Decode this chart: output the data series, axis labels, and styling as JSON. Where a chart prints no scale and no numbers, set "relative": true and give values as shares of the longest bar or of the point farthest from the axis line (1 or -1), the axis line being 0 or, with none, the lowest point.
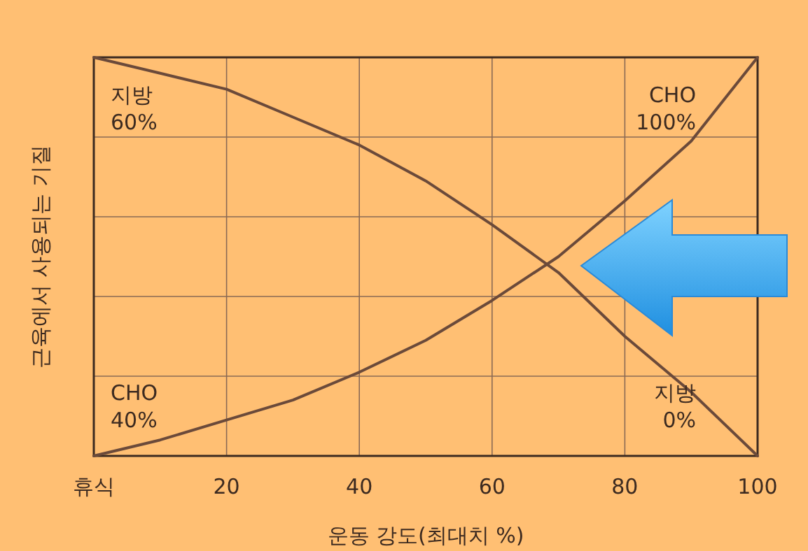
{
  "chart_data": {
    "type": "line",
    "relative": true,
    "xlabel": "운동 강도(최대치 %)",
    "ylabel": "근육에서 사용되는 기질",
    "xlim": [
      0,
      100
    ],
    "xticks": [
      {
        "value": 0,
        "label": "휴식"
      },
      20,
      40,
      60,
      80,
      100
    ],
    "grid": true,
    "marker": "none",
    "line_style": "solid",
    "series": [
      {
        "color": "#6b4a3a",
        "x": [
          0,
          10,
          20,
          30,
          40,
          50,
          60,
          70,
          80,
          90,
          100
        ],
        "values": [
          1,
          0.96,
          0.92,
          0.85,
          0.78,
          0.69,
          0.58,
          0.46,
          0.3,
          0.16,
          0
        ]
      },
      {
        "color": "#6b4a3a",
        "x": [
          0,
          10,
          20,
          30,
          40,
          50,
          60,
          70,
          80,
          90,
          100
        ],
        "values": [
          0,
          0.04,
          0.09,
          0.14,
          0.21,
          0.29,
          0.39,
          0.5,
          0.64,
          0.79,
          1
        ]
      }
    ],
    "annotations": [
      "지방\n60%",
      "CHO\n40%",
      "CHO\n100%",
      "지방\n0%"
    ]
  }
}
